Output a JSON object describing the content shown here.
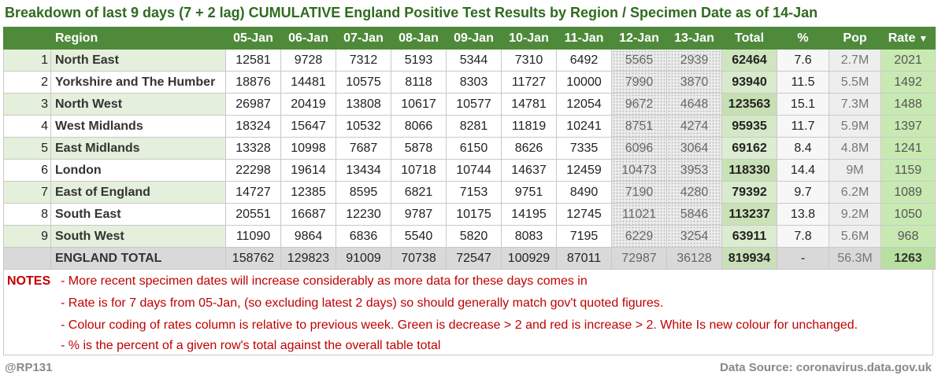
{
  "title": "Breakdown of last 9 days (7 + 2 lag) CUMULATIVE England Positive Test Results by Region / Specimen Date as of 14-Jan",
  "headers": {
    "region": "Region",
    "days": [
      "05-Jan",
      "06-Jan",
      "07-Jan",
      "08-Jan",
      "09-Jan",
      "10-Jan",
      "11-Jan"
    ],
    "lag_days": [
      "12-Jan",
      "13-Jan"
    ],
    "total": "Total",
    "pct": "%",
    "pop": "Pop",
    "rate": "Rate",
    "rate_sort_icon": "▼"
  },
  "rows": [
    {
      "idx": "1",
      "region": "North East",
      "days": [
        "12581",
        "9728",
        "7312",
        "5193",
        "5344",
        "7310",
        "6492"
      ],
      "lag": [
        "5565",
        "2939"
      ],
      "total": "62464",
      "pct": "7.6",
      "pop": "2.7M",
      "rate": "2021"
    },
    {
      "idx": "2",
      "region": "Yorkshire and The Humber",
      "days": [
        "18876",
        "14481",
        "10575",
        "8118",
        "8303",
        "11727",
        "10000"
      ],
      "lag": [
        "7990",
        "3870"
      ],
      "total": "93940",
      "pct": "11.5",
      "pop": "5.5M",
      "rate": "1492"
    },
    {
      "idx": "3",
      "region": "North West",
      "days": [
        "26987",
        "20419",
        "13808",
        "10617",
        "10577",
        "14781",
        "12054"
      ],
      "lag": [
        "9672",
        "4648"
      ],
      "total": "123563",
      "pct": "15.1",
      "pop": "7.3M",
      "rate": "1488"
    },
    {
      "idx": "4",
      "region": "West Midlands",
      "days": [
        "18324",
        "15647",
        "10532",
        "8066",
        "8281",
        "11819",
        "10241"
      ],
      "lag": [
        "8751",
        "4274"
      ],
      "total": "95935",
      "pct": "11.7",
      "pop": "5.9M",
      "rate": "1397"
    },
    {
      "idx": "5",
      "region": "East Midlands",
      "days": [
        "13328",
        "10998",
        "7687",
        "5878",
        "6150",
        "8626",
        "7335"
      ],
      "lag": [
        "6096",
        "3064"
      ],
      "total": "69162",
      "pct": "8.4",
      "pop": "4.8M",
      "rate": "1241"
    },
    {
      "idx": "6",
      "region": "London",
      "days": [
        "22298",
        "19614",
        "13434",
        "10718",
        "10744",
        "14637",
        "12459"
      ],
      "lag": [
        "10473",
        "3953"
      ],
      "total": "118330",
      "pct": "14.4",
      "pop": "9M",
      "rate": "1159"
    },
    {
      "idx": "7",
      "region": "East of England",
      "days": [
        "14727",
        "12385",
        "8595",
        "6821",
        "7153",
        "9751",
        "8490"
      ],
      "lag": [
        "7190",
        "4280"
      ],
      "total": "79392",
      "pct": "9.7",
      "pop": "6.2M",
      "rate": "1089"
    },
    {
      "idx": "8",
      "region": "South East",
      "days": [
        "20551",
        "16687",
        "12230",
        "9787",
        "10175",
        "14195",
        "12745"
      ],
      "lag": [
        "11021",
        "5846"
      ],
      "total": "113237",
      "pct": "13.8",
      "pop": "9.2M",
      "rate": "1050"
    },
    {
      "idx": "9",
      "region": "South West",
      "days": [
        "11090",
        "9864",
        "6836",
        "5540",
        "5820",
        "8083",
        "7195"
      ],
      "lag": [
        "6229",
        "3254"
      ],
      "total": "63911",
      "pct": "7.8",
      "pop": "5.6M",
      "rate": "968"
    }
  ],
  "total_row": {
    "idx": "",
    "region": "ENGLAND TOTAL",
    "days": [
      "158762",
      "129823",
      "91009",
      "70738",
      "72547",
      "100929",
      "87011"
    ],
    "lag": [
      "72987",
      "36128"
    ],
    "total": "819934",
    "pct": "-",
    "pop": "56.3M",
    "rate": "1263"
  },
  "colors": {
    "header_bg": "#4e8a3a",
    "title": "#2f6b1f",
    "notes_text": "#c00000",
    "rate_green": "#b8e0a0",
    "total_green": "#c9dfb9"
  },
  "notes": {
    "label": "NOTES",
    "lines": [
      "- More recent specimen dates will increase considerably as more data for these days comes in",
      "- Rate is for 7 days from 05-Jan, (so excluding latest 2 days) so should generally match gov't quoted figures.",
      "- Colour coding of rates column is relative to previous week. Green is decrease > 2 and red is increase > 2. White Is new colour for unchanged.",
      "- % is the percent of a given row's total against the overall table total"
    ]
  },
  "footer": {
    "left": "@RP131",
    "right": "Data Source: coronavirus.data.gov.uk"
  }
}
